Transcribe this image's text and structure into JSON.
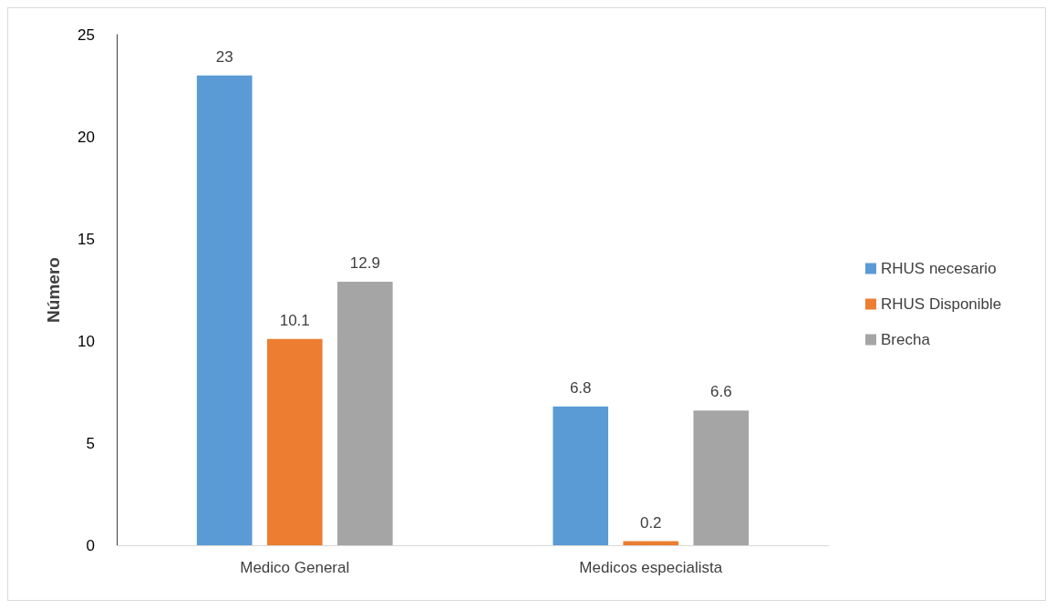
{
  "chart_data": {
    "type": "bar",
    "ylabel": "Número",
    "categories": [
      "Medico General",
      "Medicos especialista"
    ],
    "series": [
      {
        "name": "RHUS necesario",
        "color": "#5b9bd5",
        "values": [
          23,
          6.8
        ]
      },
      {
        "name": "RHUS Disponible",
        "color": "#ed7d31",
        "values": [
          10.1,
          0.2
        ]
      },
      {
        "name": "Brecha",
        "color": "#a5a5a5",
        "values": [
          12.9,
          6.6
        ]
      }
    ],
    "ylim": [
      0,
      25
    ],
    "yticks": [
      0,
      5,
      10,
      15,
      20,
      25
    ],
    "grid": false,
    "legend": "right",
    "data_labels": true
  }
}
